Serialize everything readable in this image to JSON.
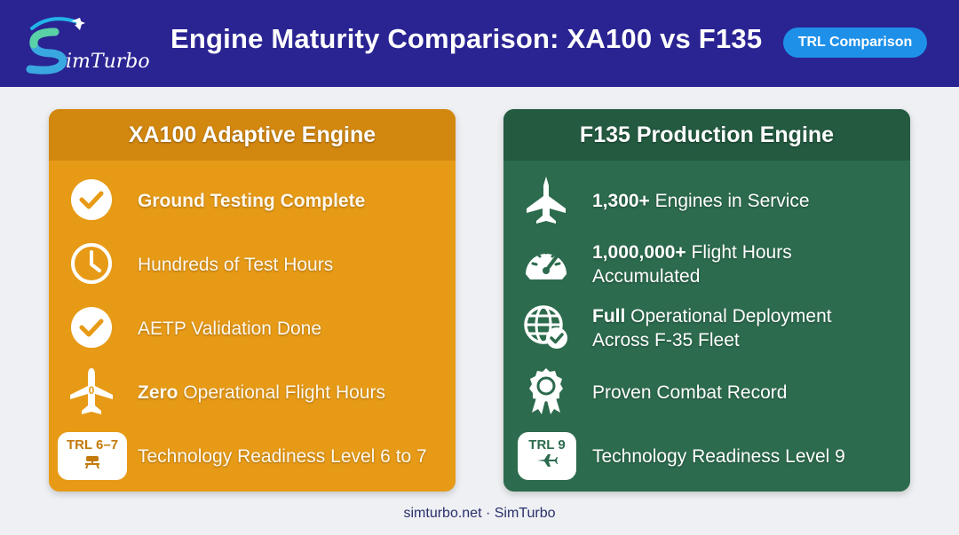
{
  "header": {
    "logo_text": "SimTurbo",
    "title": "Engine Maturity Comparison: XA100 vs F135",
    "badge": "TRL Comparison"
  },
  "xa100": {
    "title": "XA100 Adaptive Engine",
    "items": [
      {
        "icon": "check-circle-icon",
        "bold": "Ground Testing Complete",
        "text": ""
      },
      {
        "icon": "clock-icon",
        "bold": "",
        "text": "Hundreds of Test Hours"
      },
      {
        "icon": "check-circle-icon",
        "bold": "",
        "text": "AETP Validation Done"
      },
      {
        "icon": "airplane-zero-icon",
        "bold": "Zero",
        "text": " Operational Flight Hours",
        "icon_label": "0"
      },
      {
        "icon": "trl-badge-icon",
        "bold": "",
        "text": "Technology Readiness Level 6 to 7",
        "badge": "TRL 6–7"
      }
    ]
  },
  "f135": {
    "title": "F135 Production Engine",
    "items": [
      {
        "icon": "fighter-jet-icon",
        "bold": "1,300+",
        "text": " Engines in Service"
      },
      {
        "icon": "gauge-icon",
        "bold": "1,000,000+",
        "text": " Flight Hours",
        "line2": "Accumulated"
      },
      {
        "icon": "globe-check-icon",
        "bold": "Full",
        "text": " Operational Deployment",
        "line2": "Across F-35 Fleet"
      },
      {
        "icon": "award-ribbon-icon",
        "bold": "",
        "text": "Proven Combat Record"
      },
      {
        "icon": "trl-badge-icon",
        "bold": "",
        "text": "Technology Readiness Level 9",
        "badge": "TRL 9"
      }
    ]
  },
  "footer": "simturbo.net · SimTurbo",
  "colors": {
    "header_bg": "#2a2392",
    "badge_bg": "#1e90e8",
    "xa100_bg": "#e79a16",
    "f135_bg": "#2c6b4d"
  }
}
